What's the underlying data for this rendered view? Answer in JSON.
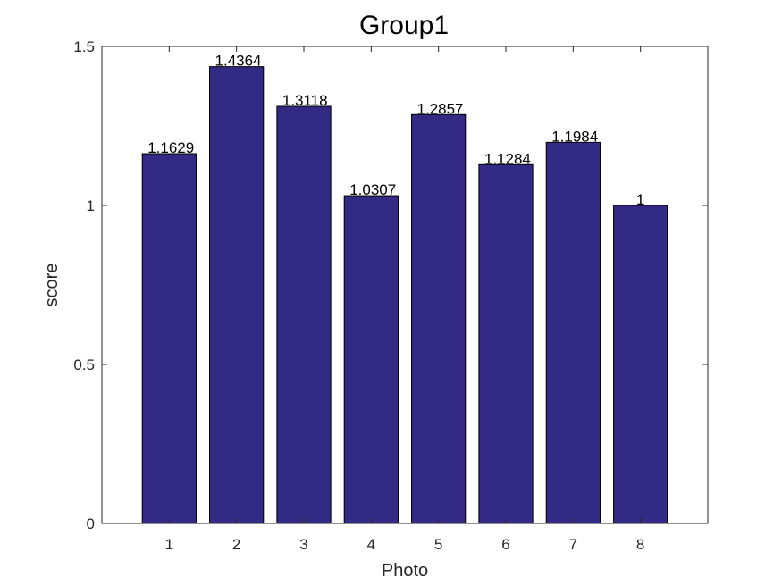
{
  "chart_data": {
    "type": "bar",
    "title": "Group1",
    "xlabel": "Photo",
    "ylabel": "score",
    "categories": [
      "1",
      "2",
      "3",
      "4",
      "5",
      "6",
      "7",
      "8"
    ],
    "values": [
      1.1629,
      1.4364,
      1.3118,
      1.0307,
      1.2857,
      1.1284,
      1.1984,
      1
    ],
    "data_labels": [
      "1.1629",
      "1.4364",
      "1.3118",
      "1.0307",
      "1.2857",
      "1.1284",
      "1.1984",
      "1"
    ],
    "ylim": [
      0,
      1.5
    ],
    "yticks": [
      0,
      0.5,
      1,
      1.5
    ],
    "ytick_labels": [
      "0",
      "0.5",
      "1",
      "1.5"
    ],
    "grid": false,
    "bar_color": "#332a85",
    "bar_edge_color": "#000000"
  }
}
